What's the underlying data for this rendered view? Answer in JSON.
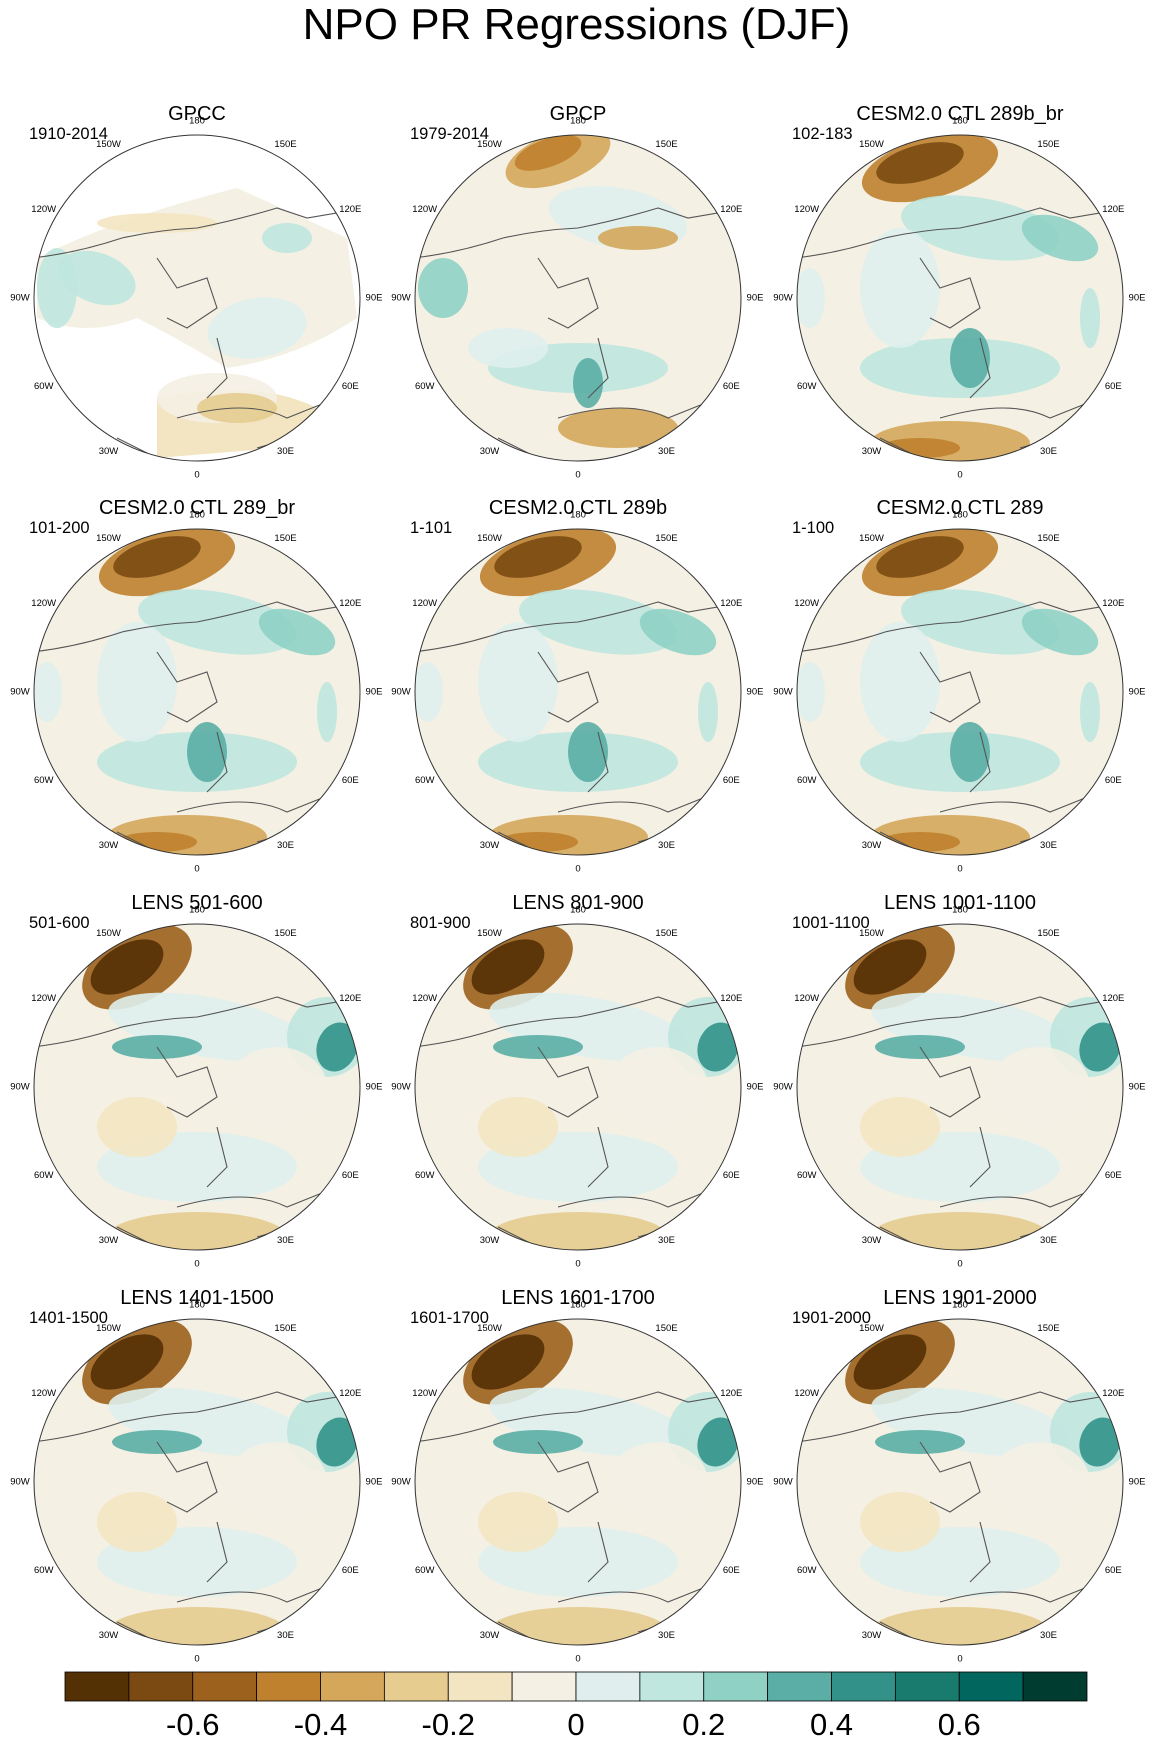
{
  "title": "NPO PR Regressions (DJF)",
  "colors": {
    "levels": [
      "#543005",
      "#7a4a12",
      "#9c611c",
      "#bf812d",
      "#d4a75a",
      "#e6cc8f",
      "#f4e5c2",
      "#f5f0e4",
      "#e0efed",
      "#bfe6df",
      "#8fd2c5",
      "#5aaea5",
      "#32928a",
      "#197a6e",
      "#01665e",
      "#003c30"
    ]
  },
  "colorbar": {
    "labels": [
      "-0.6",
      "-0.4",
      "-0.2",
      "0",
      "0.2",
      "0.4",
      "0.6"
    ]
  },
  "lon_labels": [
    "180",
    "150E",
    "120E",
    "90E",
    "60E",
    "30E",
    "0",
    "30W",
    "60W",
    "90W",
    "120W",
    "150W"
  ],
  "panels": [
    {
      "title": "GPCC",
      "period": "1910-2014",
      "pattern": "obs_land"
    },
    {
      "title": "GPCP",
      "period": "1979-2014",
      "pattern": "obs"
    },
    {
      "title": "CESM2.0 CTL 289b_br",
      "period": "102-183",
      "pattern": "model"
    },
    {
      "title": "CESM2.0 CTL 289_br",
      "period": "101-200",
      "pattern": "model"
    },
    {
      "title": "CESM2.0 CTL 289b",
      "period": "1-101",
      "pattern": "model"
    },
    {
      "title": "CESM2.0 CTL 289",
      "period": "1-100",
      "pattern": "model"
    },
    {
      "title": "LENS 501-600",
      "period": "501-600",
      "pattern": "lens"
    },
    {
      "title": "LENS 801-900",
      "period": "801-900",
      "pattern": "lens"
    },
    {
      "title": "LENS 1001-1100",
      "period": "1001-1100",
      "pattern": "lens"
    },
    {
      "title": "LENS 1401-1500",
      "period": "1401-1500",
      "pattern": "lens"
    },
    {
      "title": "LENS 1601-1700",
      "period": "1601-1700",
      "pattern": "lens"
    },
    {
      "title": "LENS 1901-2000",
      "period": "1901-2000",
      "pattern": "lens"
    }
  ]
}
